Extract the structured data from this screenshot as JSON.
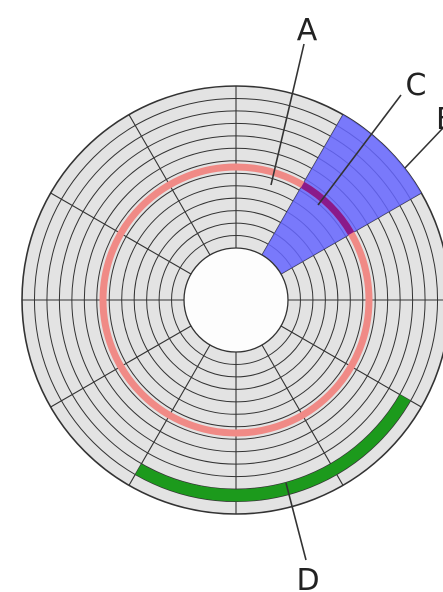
{
  "diagram": {
    "labels": {
      "a": "A",
      "b": "B",
      "c": "C",
      "d": "D"
    },
    "colors": {
      "background": "#ffffff",
      "platter_fill": "#e3e3e3",
      "track_line": "#333333",
      "hub_fill": "#fdfdfd",
      "track_highlight": "#f08a86",
      "sector_highlight": "#6666ff",
      "track_sector_overlap": "#8a1a8a",
      "cluster_highlight": "#1c9a1c",
      "label_text": "#222222"
    },
    "parts": {
      "track_count": 12,
      "sector_count": 12
    }
  }
}
